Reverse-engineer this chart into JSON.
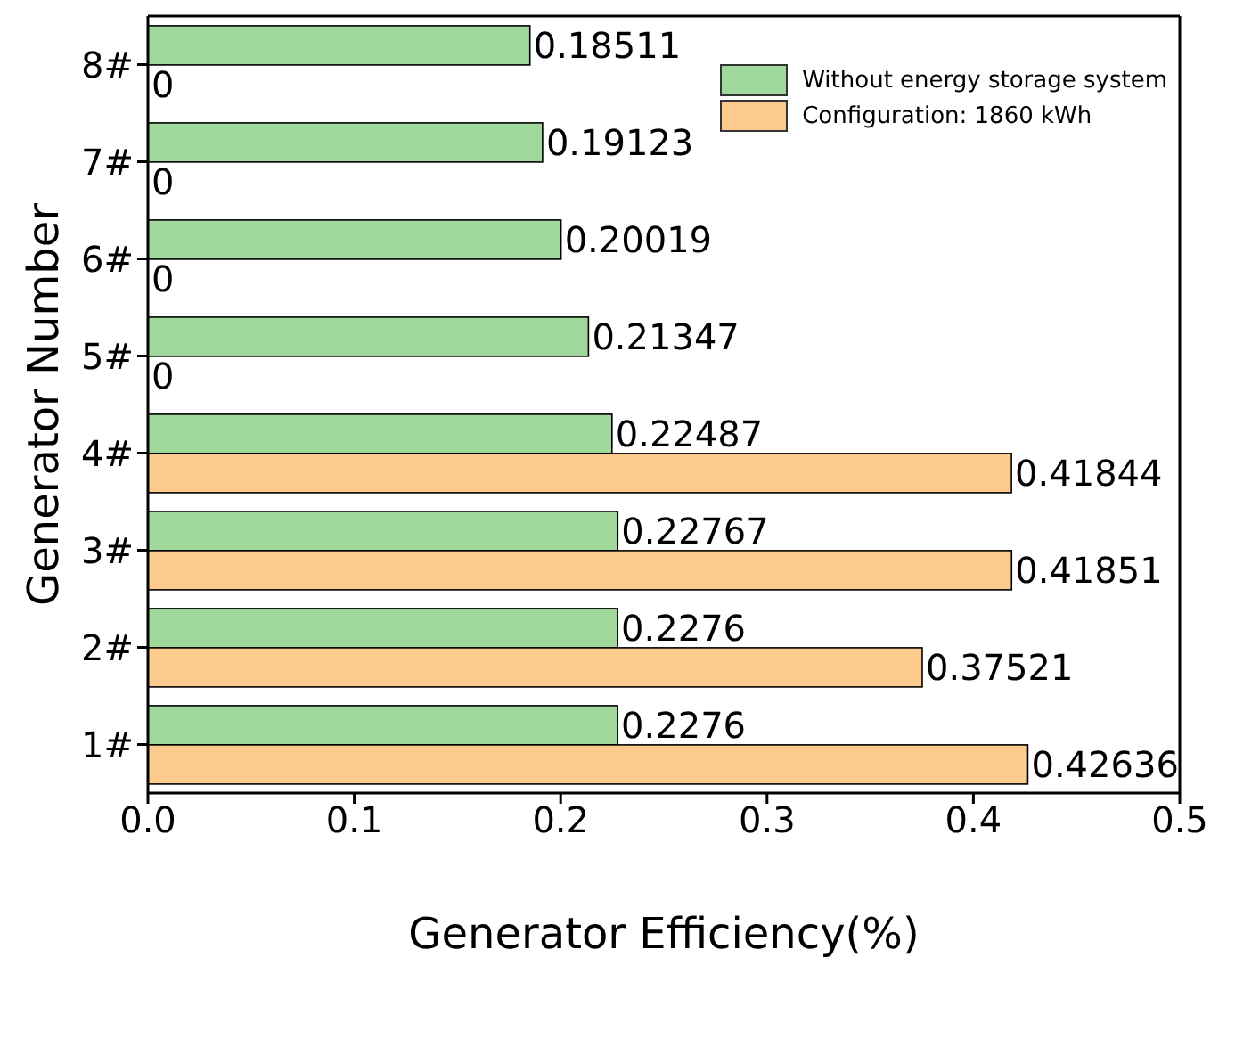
{
  "chart_data": {
    "type": "bar",
    "orientation": "horizontal",
    "xlabel": "Generator Efficiency(%)",
    "ylabel": "Generator Number",
    "categories": [
      "8#",
      "7#",
      "6#",
      "5#",
      "4#",
      "3#",
      "2#",
      "1#"
    ],
    "series": [
      {
        "name": "Without energy storage system",
        "color": "#9fd89a",
        "values": [
          0.18511,
          0.19123,
          0.20019,
          0.21347,
          0.22487,
          0.22767,
          0.2276,
          0.2276
        ]
      },
      {
        "name": "Configuration: 1860 kWh",
        "color": "#fdcb8e",
        "values": [
          0,
          0,
          0,
          0,
          0.41844,
          0.41851,
          0.37521,
          0.42636
        ]
      }
    ],
    "xlim": [
      0,
      0.5
    ],
    "xticks": [
      {
        "value": 0,
        "label": "0.0"
      },
      0.1,
      0.2,
      0.3,
      0.4,
      0.5
    ],
    "data_labels": true,
    "legend": "top right",
    "grid": false
  }
}
